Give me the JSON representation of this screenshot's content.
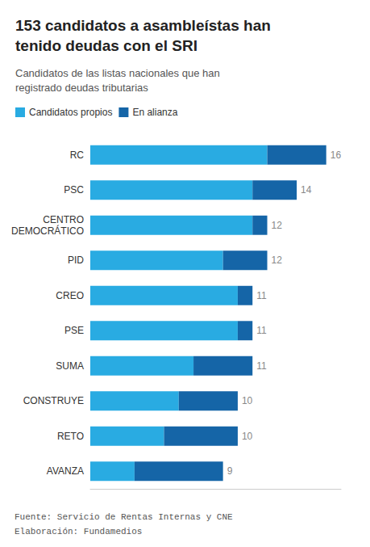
{
  "chart_data": {
    "type": "bar",
    "orientation": "horizontal",
    "stacked": true,
    "title": "153 candidatos a asambleístas han\ntenido deudas con el SRI",
    "subtitle": "Candidatos de las listas nacionales que han\nregistrado deudas tributarias",
    "categories": [
      "RC",
      "PSC",
      "CENTRO\nDEMOCRÁTICO",
      "PID",
      "CREO",
      "PSE",
      "SUMA",
      "CONSTRUYE",
      "RETO",
      "AVANZA"
    ],
    "series": [
      {
        "name": "Candidatos propios",
        "color": "#29ABE2",
        "values": [
          12,
          11,
          11,
          9,
          10,
          10,
          7,
          6,
          5,
          3
        ]
      },
      {
        "name": "En alianza",
        "color": "#1565A7",
        "values": [
          4,
          3,
          1,
          3,
          1,
          1,
          4,
          4,
          5,
          6
        ]
      }
    ],
    "totals": [
      16,
      14,
      12,
      12,
      11,
      11,
      11,
      10,
      10,
      9
    ],
    "xlim": [
      0,
      17
    ],
    "tick_labels": "y",
    "grid": false,
    "legend": "top left",
    "annotations": [
      "Fuente: Servicio de Rentas Internas y CNE",
      "Elaboración: Fundamedios"
    ]
  }
}
